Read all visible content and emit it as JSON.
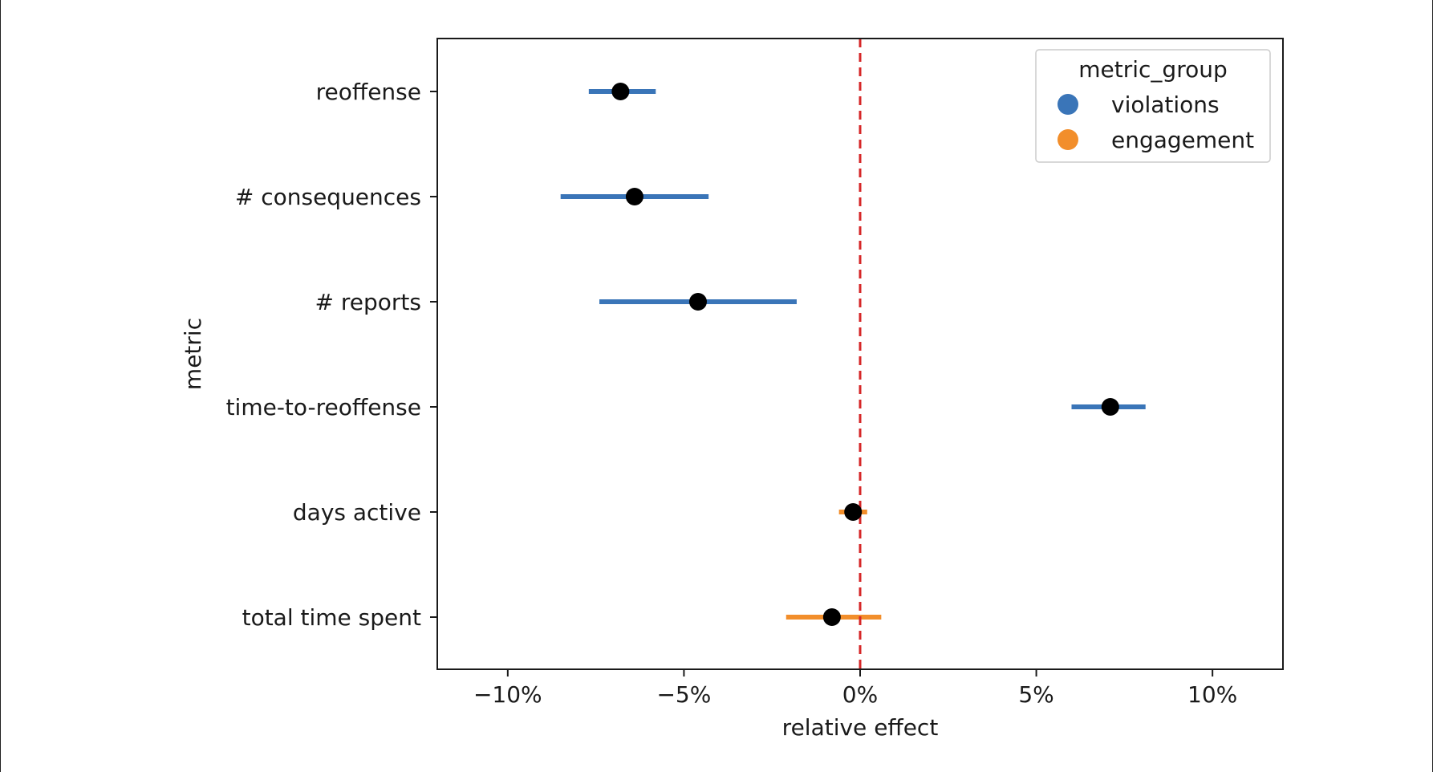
{
  "chart_data": {
    "type": "point-interval",
    "xlabel": "relative effect",
    "ylabel": "metric",
    "xlim": [
      -12,
      12
    ],
    "xticks": [
      {
        "value": -10,
        "label": "−10%"
      },
      {
        "value": -5,
        "label": "−5%"
      },
      {
        "value": 0,
        "label": "0%"
      },
      {
        "value": 5,
        "label": "5%"
      },
      {
        "value": 10,
        "label": "10%"
      }
    ],
    "reference_line": {
      "x": 0,
      "style": "dashed",
      "color": "#d62728"
    },
    "categories": [
      "reoffense",
      "# consequences",
      "# reports",
      "time-to-reoffense",
      "days active",
      "total time spent"
    ],
    "points": [
      {
        "metric": "reoffense",
        "group": "violations",
        "estimate": -6.8,
        "ci_low": -7.7,
        "ci_high": -5.8
      },
      {
        "metric": "# consequences",
        "group": "violations",
        "estimate": -6.4,
        "ci_low": -8.5,
        "ci_high": -4.3
      },
      {
        "metric": "# reports",
        "group": "violations",
        "estimate": -4.6,
        "ci_low": -7.4,
        "ci_high": -1.8
      },
      {
        "metric": "time-to-reoffense",
        "group": "violations",
        "estimate": 7.1,
        "ci_low": 6.0,
        "ci_high": 8.1
      },
      {
        "metric": "days active",
        "group": "engagement",
        "estimate": -0.2,
        "ci_low": -0.6,
        "ci_high": 0.2
      },
      {
        "metric": "total time spent",
        "group": "engagement",
        "estimate": -0.8,
        "ci_low": -2.1,
        "ci_high": 0.6
      }
    ],
    "legend": {
      "title": "metric_group",
      "position": "top-right",
      "entries": [
        {
          "name": "violations",
          "color": "#3a75b8"
        },
        {
          "name": "engagement",
          "color": "#f28e2b"
        }
      ]
    },
    "point_color": "#000000",
    "grid": false
  }
}
